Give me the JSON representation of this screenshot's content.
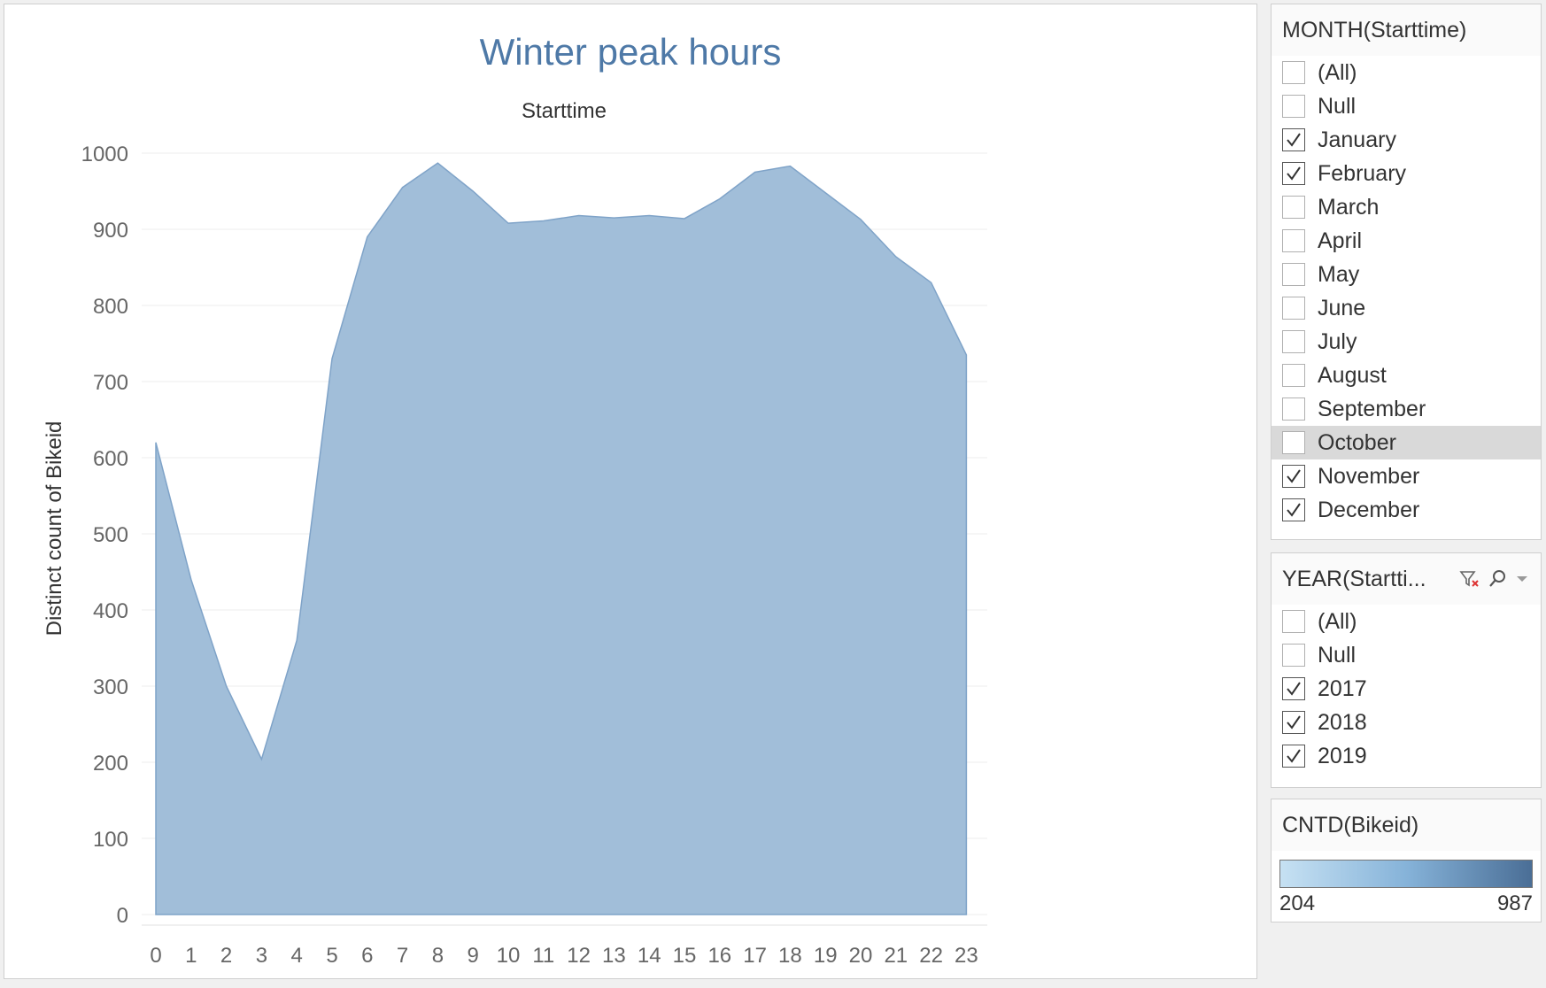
{
  "viz": {
    "title": "Winter peak hours",
    "fill_color": "#a1bed9",
    "line_color": "#7fa3c8"
  },
  "chart_data": {
    "type": "area",
    "title": "Winter peak hours",
    "xlabel": "Starttime",
    "ylabel": "Distinct count of Bikeid",
    "x": [
      "0",
      "1",
      "2",
      "3",
      "4",
      "5",
      "6",
      "7",
      "8",
      "9",
      "10",
      "11",
      "12",
      "13",
      "14",
      "15",
      "16",
      "17",
      "18",
      "19",
      "20",
      "21",
      "22",
      "23"
    ],
    "values": [
      620,
      440,
      300,
      204,
      360,
      730,
      890,
      955,
      987,
      950,
      908,
      911,
      918,
      915,
      918,
      914,
      940,
      975,
      983,
      948,
      913,
      864,
      830,
      735
    ],
    "ylim": [
      0,
      1000
    ],
    "yticks": [
      0,
      100,
      200,
      300,
      400,
      500,
      600,
      700,
      800,
      900,
      1000
    ],
    "grid": true,
    "color": "#a1bed9"
  },
  "month_filter": {
    "title": "MONTH(Starttime)",
    "options": [
      {
        "label": "(All)",
        "checked": false
      },
      {
        "label": "Null",
        "checked": false
      },
      {
        "label": "January",
        "checked": true
      },
      {
        "label": "February",
        "checked": true
      },
      {
        "label": "March",
        "checked": false
      },
      {
        "label": "April",
        "checked": false
      },
      {
        "label": "May",
        "checked": false
      },
      {
        "label": "June",
        "checked": false
      },
      {
        "label": "July",
        "checked": false
      },
      {
        "label": "August",
        "checked": false
      },
      {
        "label": "September",
        "checked": false
      },
      {
        "label": "October",
        "checked": false,
        "highlighted": true
      },
      {
        "label": "November",
        "checked": true
      },
      {
        "label": "December",
        "checked": true
      }
    ]
  },
  "year_filter": {
    "title": "YEAR(Startti...",
    "icons": [
      "clear-filter-icon",
      "search-icon",
      "dropdown-arrow-icon"
    ],
    "options": [
      {
        "label": "(All)",
        "checked": false
      },
      {
        "label": "Null",
        "checked": false
      },
      {
        "label": "2017",
        "checked": true
      },
      {
        "label": "2018",
        "checked": true
      },
      {
        "label": "2019",
        "checked": true
      }
    ]
  },
  "color_legend": {
    "title": "CNTD(Bikeid)",
    "min": "204",
    "max": "987",
    "gradient": [
      "#c6e1f3",
      "#4a6e96"
    ]
  }
}
